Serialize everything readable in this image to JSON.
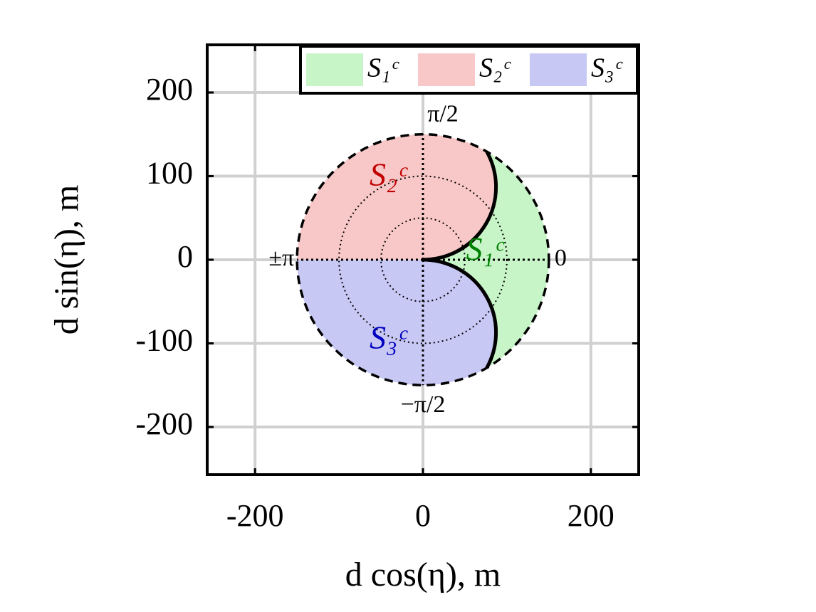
{
  "chart_data": {
    "type": "region",
    "xlabel": "d cos(η),  m",
    "ylabel": "d sin(η),  m",
    "xlim": [
      -257,
      257
    ],
    "ylim": [
      -257,
      257
    ],
    "xticks": [
      -200,
      0,
      200
    ],
    "yticks": [
      -200,
      -100,
      0,
      100,
      200
    ],
    "grid": true,
    "legend": "top-right",
    "radius": 150,
    "rings": [
      50,
      100
    ],
    "boundary_radius": 87,
    "angle_labels": [
      "0",
      "π/2",
      "±π",
      "−π/2"
    ],
    "series": [
      {
        "name": "S₁ᶜ",
        "color": "#c8f5c8",
        "label_color": "#008000"
      },
      {
        "name": "S₂ᶜ",
        "color": "#f8c8c8",
        "label_color": "#c00000"
      },
      {
        "name": "S₃ᶜ",
        "color": "#c8c8f5",
        "label_color": "#0000c0"
      }
    ]
  }
}
